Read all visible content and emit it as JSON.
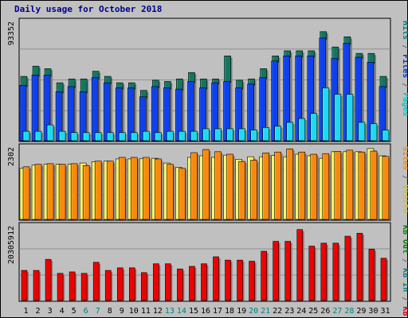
{
  "chart_data": {
    "type": "bar",
    "title": "Daily usage for October 2018",
    "categories": [
      "1",
      "2",
      "3",
      "4",
      "5",
      "6",
      "7",
      "8",
      "9",
      "10",
      "11",
      "12",
      "13",
      "14",
      "15",
      "16",
      "17",
      "18",
      "19",
      "20",
      "21",
      "22",
      "23",
      "24",
      "25",
      "26",
      "27",
      "28",
      "29",
      "30",
      "31"
    ],
    "weekend_days": [
      6,
      7,
      13,
      14,
      20,
      21,
      27,
      28
    ],
    "panels": [
      {
        "max_label": "93352",
        "ylim": [
          0,
          93352
        ],
        "side_labels": [
          {
            "text": "Pages",
            "color": "#00cccc"
          },
          {
            "text": " / ",
            "color": "#666666"
          },
          {
            "text": "Files",
            "color": "#0033cc"
          },
          {
            "text": " / ",
            "color": "#666666"
          },
          {
            "text": "Hits",
            "color": "#008080"
          }
        ],
        "series": [
          {
            "name": "Hits",
            "color": "#127660",
            "values": [
              51000,
              59000,
              57000,
              46000,
              49000,
              49000,
              55000,
              51000,
              46000,
              46000,
              40000,
              48000,
              47000,
              49000,
              54000,
              49000,
              49000,
              67000,
              48000,
              49000,
              57000,
              67000,
              71000,
              71000,
              71000,
              86000,
              74000,
              82000,
              69000,
              69000,
              51000
            ]
          },
          {
            "name": "Files",
            "color": "#1040ec",
            "values": [
              44000,
              52000,
              52000,
              39000,
              43000,
              39000,
              50000,
              46000,
              42000,
              42000,
              35000,
              43000,
              42000,
              41000,
              47000,
              42000,
              46000,
              47000,
              42000,
              45000,
              50000,
              63000,
              67000,
              67000,
              67000,
              81000,
              65000,
              77000,
              66000,
              62000,
              43000
            ]
          },
          {
            "name": "Pages",
            "color": "#20d8f0",
            "values": [
              8000,
              8000,
              13000,
              8000,
              7000,
              7000,
              7000,
              7000,
              7000,
              7000,
              8000,
              7000,
              8000,
              8000,
              8000,
              10000,
              10000,
              10000,
              10000,
              9000,
              11000,
              12000,
              15000,
              18000,
              22000,
              42000,
              37000,
              37000,
              15000,
              14000,
              9000
            ]
          }
        ]
      },
      {
        "max_label": "2302",
        "ylim": [
          0,
          2302
        ],
        "side_labels": [
          {
            "text": "Visits",
            "color": "#e0c000"
          },
          {
            "text": " / ",
            "color": "#666666"
          },
          {
            "text": "Sites",
            "color": "#ff8800"
          }
        ],
        "series": [
          {
            "name": "Visits",
            "color": "#fff060",
            "values": [
              1650,
              1750,
              1780,
              1780,
              1780,
              1820,
              1860,
              1880,
              1950,
              1950,
              1960,
              1970,
              1820,
              1680,
              2000,
              2050,
              2000,
              2070,
              1940,
              2020,
              2020,
              2060,
              2020,
              2100,
              2050,
              1970,
              2180,
              2180,
              2180,
              2280,
              2050
            ]
          },
          {
            "name": "Sites",
            "color": "#f88810",
            "values": [
              1700,
              1780,
              1800,
              1780,
              1800,
              1740,
              1880,
              1880,
              2000,
              2000,
              2000,
              1950,
              1780,
              1650,
              2150,
              2250,
              2180,
              2100,
              1870,
              1910,
              2140,
              2170,
              2270,
              2170,
              2100,
              2120,
              2190,
              2230,
              2170,
              2200,
              2030
            ]
          }
        ]
      },
      {
        "max_label": "20305912",
        "ylim": [
          0,
          20305912
        ],
        "side_labels": [
          {
            "text": "KB F",
            "color": "#e00000"
          },
          {
            "text": " / ",
            "color": "#666666"
          },
          {
            "text": "KB In",
            "color": "#008080"
          },
          {
            "text": " / ",
            "color": "#666666"
          },
          {
            "text": "KB Out",
            "color": "#008000"
          }
        ],
        "series": [
          {
            "name": "KB F",
            "color": "#ee0000",
            "values": [
              8400000,
              8400000,
              11400000,
              7600000,
              8000000,
              7600000,
              10600000,
              8400000,
              9100000,
              9100000,
              7800000,
              10200000,
              10200000,
              8800000,
              9500000,
              10200000,
              12100000,
              11200000,
              11200000,
              10900000,
              13600000,
              16300000,
              16300000,
              19500000,
              15000000,
              15800000,
              15800000,
              17700000,
              18500000,
              14200000,
              11700000
            ]
          }
        ]
      }
    ]
  }
}
